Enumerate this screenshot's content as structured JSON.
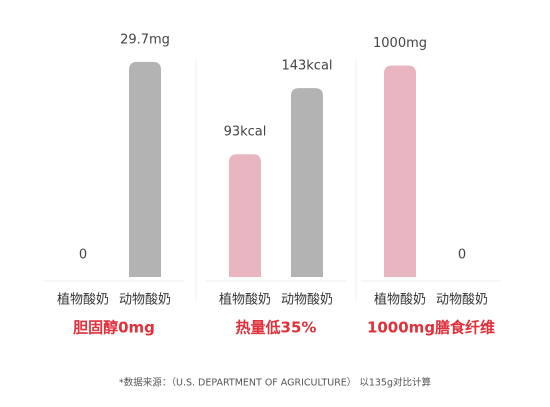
{
  "chart_data": [
    {
      "type": "bar",
      "title": "胆固醇0mg",
      "categories": [
        "植物酸奶",
        "动物酸奶"
      ],
      "values": [
        0,
        29.7
      ],
      "value_labels": [
        "0",
        "29.7mg"
      ],
      "colors": [
        "#e8b5c1",
        "#b3b3b3"
      ],
      "ylim": [
        0,
        33
      ]
    },
    {
      "type": "bar",
      "title": "热量低35%",
      "categories": [
        "植物酸奶",
        "动物酸奶"
      ],
      "values": [
        93,
        143
      ],
      "value_labels": [
        "93kcal",
        "143kcal"
      ],
      "colors": [
        "#e8b5c1",
        "#b3b3b3"
      ],
      "ylim": [
        0,
        181
      ]
    },
    {
      "type": "bar",
      "title": "1000mg膳食纤维",
      "categories": [
        "植物酸奶",
        "动物酸奶"
      ],
      "values": [
        1000,
        0
      ],
      "value_labels": [
        "1000mg",
        "0"
      ],
      "colors": [
        "#e8b5c1",
        "#b3b3b3"
      ],
      "ylim": [
        0,
        1130
      ]
    }
  ],
  "footnote": "*数据来源：（U.S. DEPARTMENT OF AGRICULTURE） 以135g对比计算"
}
